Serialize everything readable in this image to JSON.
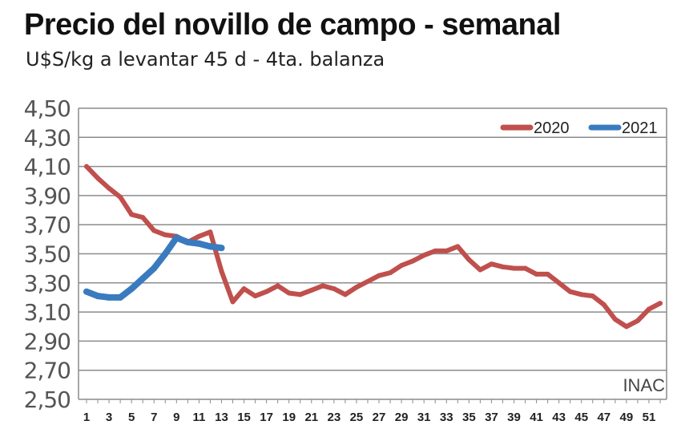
{
  "title": "Precio del novillo de campo - semanal",
  "subtitle": "U$S/kg a levantar 45 d - 4ta. balanza",
  "source": "INAC",
  "colors": {
    "2020": "#c0504d",
    "2021": "#3a7bbf",
    "grid": "#8c8c8c"
  },
  "chart_data": {
    "type": "line",
    "title": "Precio del novillo de campo - semanal",
    "subtitle": "U$S/kg a levantar 45 d - 4ta. balanza",
    "xlabel": "",
    "ylabel": "",
    "ylim": [
      2.5,
      4.5
    ],
    "yticks": [
      2.5,
      2.7,
      2.9,
      3.1,
      3.3,
      3.5,
      3.7,
      3.9,
      4.1,
      4.3,
      4.5
    ],
    "ytick_labels": [
      "2,50",
      "2,70",
      "2,90",
      "3,10",
      "3,30",
      "3,50",
      "3,70",
      "3,90",
      "4,10",
      "4,30",
      "4,50"
    ],
    "xlim": [
      1,
      52
    ],
    "xtick_labels": [
      "1",
      "3",
      "5",
      "7",
      "9",
      "11",
      "13",
      "15",
      "17",
      "19",
      "21",
      "23",
      "25",
      "27",
      "29",
      "31",
      "33",
      "35",
      "37",
      "39",
      "41",
      "43",
      "45",
      "47",
      "49",
      "51"
    ],
    "grid": true,
    "legend_position": "top-right",
    "series": [
      {
        "name": "2020",
        "color": "#c0504d",
        "x": [
          1,
          2,
          3,
          4,
          5,
          6,
          7,
          8,
          9,
          10,
          11,
          12,
          13,
          14,
          15,
          16,
          17,
          18,
          19,
          20,
          21,
          22,
          23,
          24,
          25,
          26,
          27,
          28,
          29,
          30,
          31,
          32,
          33,
          34,
          35,
          36,
          37,
          38,
          39,
          40,
          41,
          42,
          43,
          44,
          45,
          46,
          47,
          48,
          49,
          50,
          51,
          52
        ],
        "values": [
          4.1,
          4.02,
          3.95,
          3.89,
          3.77,
          3.75,
          3.66,
          3.63,
          3.62,
          3.58,
          3.62,
          3.65,
          3.38,
          3.17,
          3.26,
          3.21,
          3.24,
          3.28,
          3.23,
          3.22,
          3.25,
          3.28,
          3.26,
          3.22,
          3.27,
          3.31,
          3.35,
          3.37,
          3.42,
          3.45,
          3.49,
          3.52,
          3.52,
          3.55,
          3.46,
          3.39,
          3.43,
          3.41,
          3.4,
          3.4,
          3.36,
          3.36,
          3.3,
          3.24,
          3.22,
          3.21,
          3.15,
          3.05,
          3.0,
          3.04,
          3.12,
          3.16
        ]
      },
      {
        "name": "2021",
        "color": "#3a7bbf",
        "x": [
          1,
          2,
          3,
          4,
          5,
          6,
          7,
          8,
          9,
          10,
          11,
          12,
          13
        ],
        "values": [
          3.24,
          3.21,
          3.2,
          3.2,
          3.26,
          3.33,
          3.4,
          3.5,
          3.61,
          3.58,
          3.57,
          3.55,
          3.54
        ]
      }
    ]
  }
}
